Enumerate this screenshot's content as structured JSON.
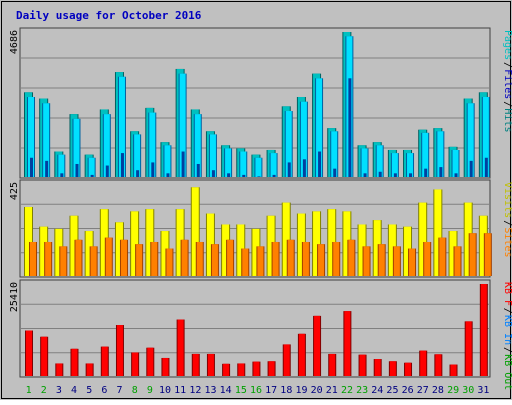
{
  "title": "Daily usage for October 2016",
  "colors": {
    "background": "#C0C0C0",
    "panel": "#C0C0C0",
    "grid": "#808080",
    "title": "#0000C0",
    "hits_front": "#00C0C0",
    "hits_shade": "#006060",
    "files_front": "#00E0FF",
    "files_shade": "#0060A0",
    "pages": "#0040A0",
    "visits": "#FFFF00",
    "sites": "#FF8000",
    "kbytes": "#FF0000",
    "day_label": "#000080",
    "weekend_label": "#00A000"
  },
  "chart_data": [
    {
      "type": "bar",
      "name_panel": "top",
      "ylabel": "4686",
      "ylim": [
        0,
        4686
      ],
      "grid": true,
      "legend": [
        {
          "text": "Pages",
          "color": "#00C0C0"
        },
        {
          "text": "/",
          "color": "#000000"
        },
        {
          "text": "Files",
          "color": "#0000C0"
        },
        {
          "text": "/",
          "color": "#000000"
        },
        {
          "text": "Hits",
          "color": "#008080"
        }
      ],
      "categories": [
        "1",
        "2",
        "3",
        "4",
        "5",
        "6",
        "7",
        "8",
        "9",
        "10",
        "11",
        "12",
        "13",
        "14",
        "15",
        "16",
        "17",
        "18",
        "19",
        "20",
        "21",
        "22",
        "23",
        "24",
        "25",
        "26",
        "27",
        "28",
        "29",
        "30",
        "31"
      ],
      "series": [
        {
          "name": "Hits",
          "values": [
            2750,
            2550,
            850,
            2050,
            750,
            2200,
            3400,
            1500,
            2250,
            1150,
            3500,
            2200,
            1500,
            1050,
            950,
            750,
            900,
            2300,
            2600,
            3350,
            1600,
            4686,
            1050,
            1150,
            900,
            900,
            1550,
            1600,
            1000,
            2550,
            2750
          ]
        },
        {
          "name": "Files",
          "values": [
            2600,
            2400,
            750,
            1900,
            650,
            2050,
            3250,
            1400,
            2100,
            1050,
            3350,
            2050,
            1400,
            950,
            850,
            650,
            800,
            2150,
            2450,
            3200,
            1500,
            4550,
            950,
            1050,
            800,
            800,
            1450,
            1500,
            900,
            2400,
            2600
          ]
        },
        {
          "name": "Pages",
          "values": [
            650,
            550,
            150,
            450,
            100,
            400,
            800,
            250,
            500,
            150,
            850,
            450,
            250,
            150,
            100,
            50,
            100,
            500,
            600,
            850,
            300,
            3200,
            150,
            200,
            150,
            150,
            300,
            350,
            150,
            550,
            650
          ]
        }
      ]
    },
    {
      "type": "bar",
      "name_panel": "middle",
      "ylabel": "425",
      "ylim": [
        0,
        425
      ],
      "grid": true,
      "legend": [
        {
          "text": "Visits",
          "color": "#C0C000"
        },
        {
          "text": "/",
          "color": "#000000"
        },
        {
          "text": "Sites",
          "color": "#FF8000"
        }
      ],
      "categories": [
        "1",
        "2",
        "3",
        "4",
        "5",
        "6",
        "7",
        "8",
        "9",
        "10",
        "11",
        "12",
        "13",
        "14",
        "15",
        "16",
        "17",
        "18",
        "19",
        "20",
        "21",
        "22",
        "23",
        "24",
        "25",
        "26",
        "27",
        "28",
        "29",
        "30",
        "31"
      ],
      "series": [
        {
          "name": "Visits",
          "values": [
            320,
            230,
            220,
            280,
            210,
            310,
            250,
            300,
            310,
            210,
            310,
            410,
            290,
            240,
            240,
            220,
            280,
            340,
            290,
            300,
            310,
            300,
            240,
            260,
            240,
            230,
            340,
            400,
            210,
            340,
            280
          ]
        },
        {
          "name": "Sites",
          "values": [
            160,
            160,
            140,
            170,
            140,
            180,
            170,
            150,
            160,
            130,
            170,
            160,
            150,
            170,
            130,
            140,
            160,
            170,
            160,
            150,
            160,
            170,
            140,
            150,
            140,
            130,
            160,
            180,
            140,
            200,
            200
          ]
        }
      ]
    },
    {
      "type": "bar",
      "name_panel": "bottom",
      "ylabel": "25410",
      "ylim": [
        0,
        25410
      ],
      "grid": true,
      "legend": [
        {
          "text": "KB F",
          "color": "#FF0000"
        },
        {
          "text": "/",
          "color": "#000000"
        },
        {
          "text": "KB In",
          "color": "#0080FF"
        },
        {
          "text": "/",
          "color": "#000000"
        },
        {
          "text": "KB Out",
          "color": "#00A000"
        }
      ],
      "categories": [
        "1",
        "2",
        "3",
        "4",
        "5",
        "6",
        "7",
        "8",
        "9",
        "10",
        "11",
        "12",
        "13",
        "14",
        "15",
        "16",
        "17",
        "18",
        "19",
        "20",
        "21",
        "22",
        "23",
        "24",
        "25",
        "26",
        "27",
        "28",
        "29",
        "30",
        "31"
      ],
      "series": [
        {
          "name": "KB F",
          "values": [
            12700,
            11000,
            3700,
            7700,
            3700,
            8300,
            14200,
            6700,
            8000,
            5200,
            15700,
            6300,
            6300,
            3600,
            3700,
            4200,
            4300,
            8900,
            11800,
            16700,
            6300,
            18000,
            6100,
            4900,
            4300,
            3900,
            7200,
            6200,
            3400,
            15200,
            25410
          ]
        }
      ]
    }
  ],
  "x_labels": {
    "days": [
      "1",
      "2",
      "3",
      "4",
      "5",
      "6",
      "7",
      "8",
      "9",
      "10",
      "11",
      "12",
      "13",
      "14",
      "15",
      "16",
      "17",
      "18",
      "19",
      "20",
      "21",
      "22",
      "23",
      "24",
      "25",
      "26",
      "27",
      "28",
      "29",
      "30",
      "31"
    ],
    "weekend": [
      1,
      2,
      8,
      9,
      15,
      16,
      22,
      23,
      29,
      30
    ]
  }
}
